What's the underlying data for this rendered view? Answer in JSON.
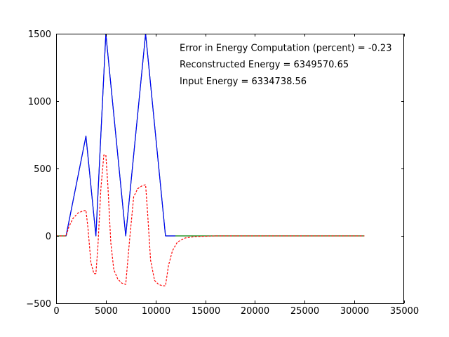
{
  "chart_data": {
    "type": "line",
    "title": "",
    "xlabel": "",
    "ylabel": "",
    "xlim": [
      0,
      35000
    ],
    "ylim": [
      -500,
      1500
    ],
    "xticks": [
      0,
      5000,
      10000,
      15000,
      20000,
      25000,
      30000,
      35000
    ],
    "xtick_labels": [
      "0",
      "5000",
      "10000",
      "15000",
      "20000",
      "25000",
      "30000",
      "35000"
    ],
    "yticks": [
      -500,
      0,
      500,
      1000,
      1500
    ],
    "ytick_labels": [
      "−500",
      "0",
      "500",
      "1000",
      "1500"
    ],
    "grid": false,
    "legend": "none",
    "annotations": [
      "Error in Energy Computation (percent) = -0.23",
      "Reconstructed Energy = 6349570.65",
      "Input Energy = 6334738.56"
    ],
    "series": [
      {
        "color": "#008000",
        "linestyle": "solid",
        "x": [
          0,
          1000,
          3000,
          4000,
          5000,
          7000,
          9000,
          11000,
          31000
        ],
        "y": [
          0,
          0,
          740,
          0,
          1500,
          0,
          1500,
          0,
          0
        ]
      },
      {
        "color": "#0000ff",
        "linestyle": "solid",
        "x": [
          1000,
          3000,
          4000,
          5000,
          7000,
          9000,
          11000,
          12000
        ],
        "y": [
          0,
          740,
          0,
          1500,
          0,
          1500,
          0,
          0
        ]
      },
      {
        "color": "#ff0000",
        "linestyle": "dashed",
        "x": [
          0,
          1000,
          1300,
          1700,
          2200,
          2700,
          3000,
          3200,
          3500,
          3800,
          4000,
          4200,
          4500,
          4800,
          5000,
          5200,
          5500,
          5800,
          6200,
          6600,
          7000,
          7400,
          7800,
          8200,
          8600,
          9000,
          9200,
          9500,
          9900,
          10300,
          10700,
          11000,
          11300,
          11700,
          12200,
          13000,
          14000,
          16000,
          20000,
          25000,
          31000
        ],
        "y": [
          0,
          0,
          70,
          130,
          170,
          185,
          190,
          60,
          -200,
          -280,
          -280,
          -80,
          350,
          600,
          600,
          380,
          -50,
          -250,
          -320,
          -350,
          -360,
          -20,
          290,
          350,
          370,
          380,
          170,
          -180,
          -330,
          -360,
          -370,
          -370,
          -220,
          -110,
          -45,
          -15,
          -5,
          0,
          0,
          0,
          0
        ]
      }
    ]
  }
}
